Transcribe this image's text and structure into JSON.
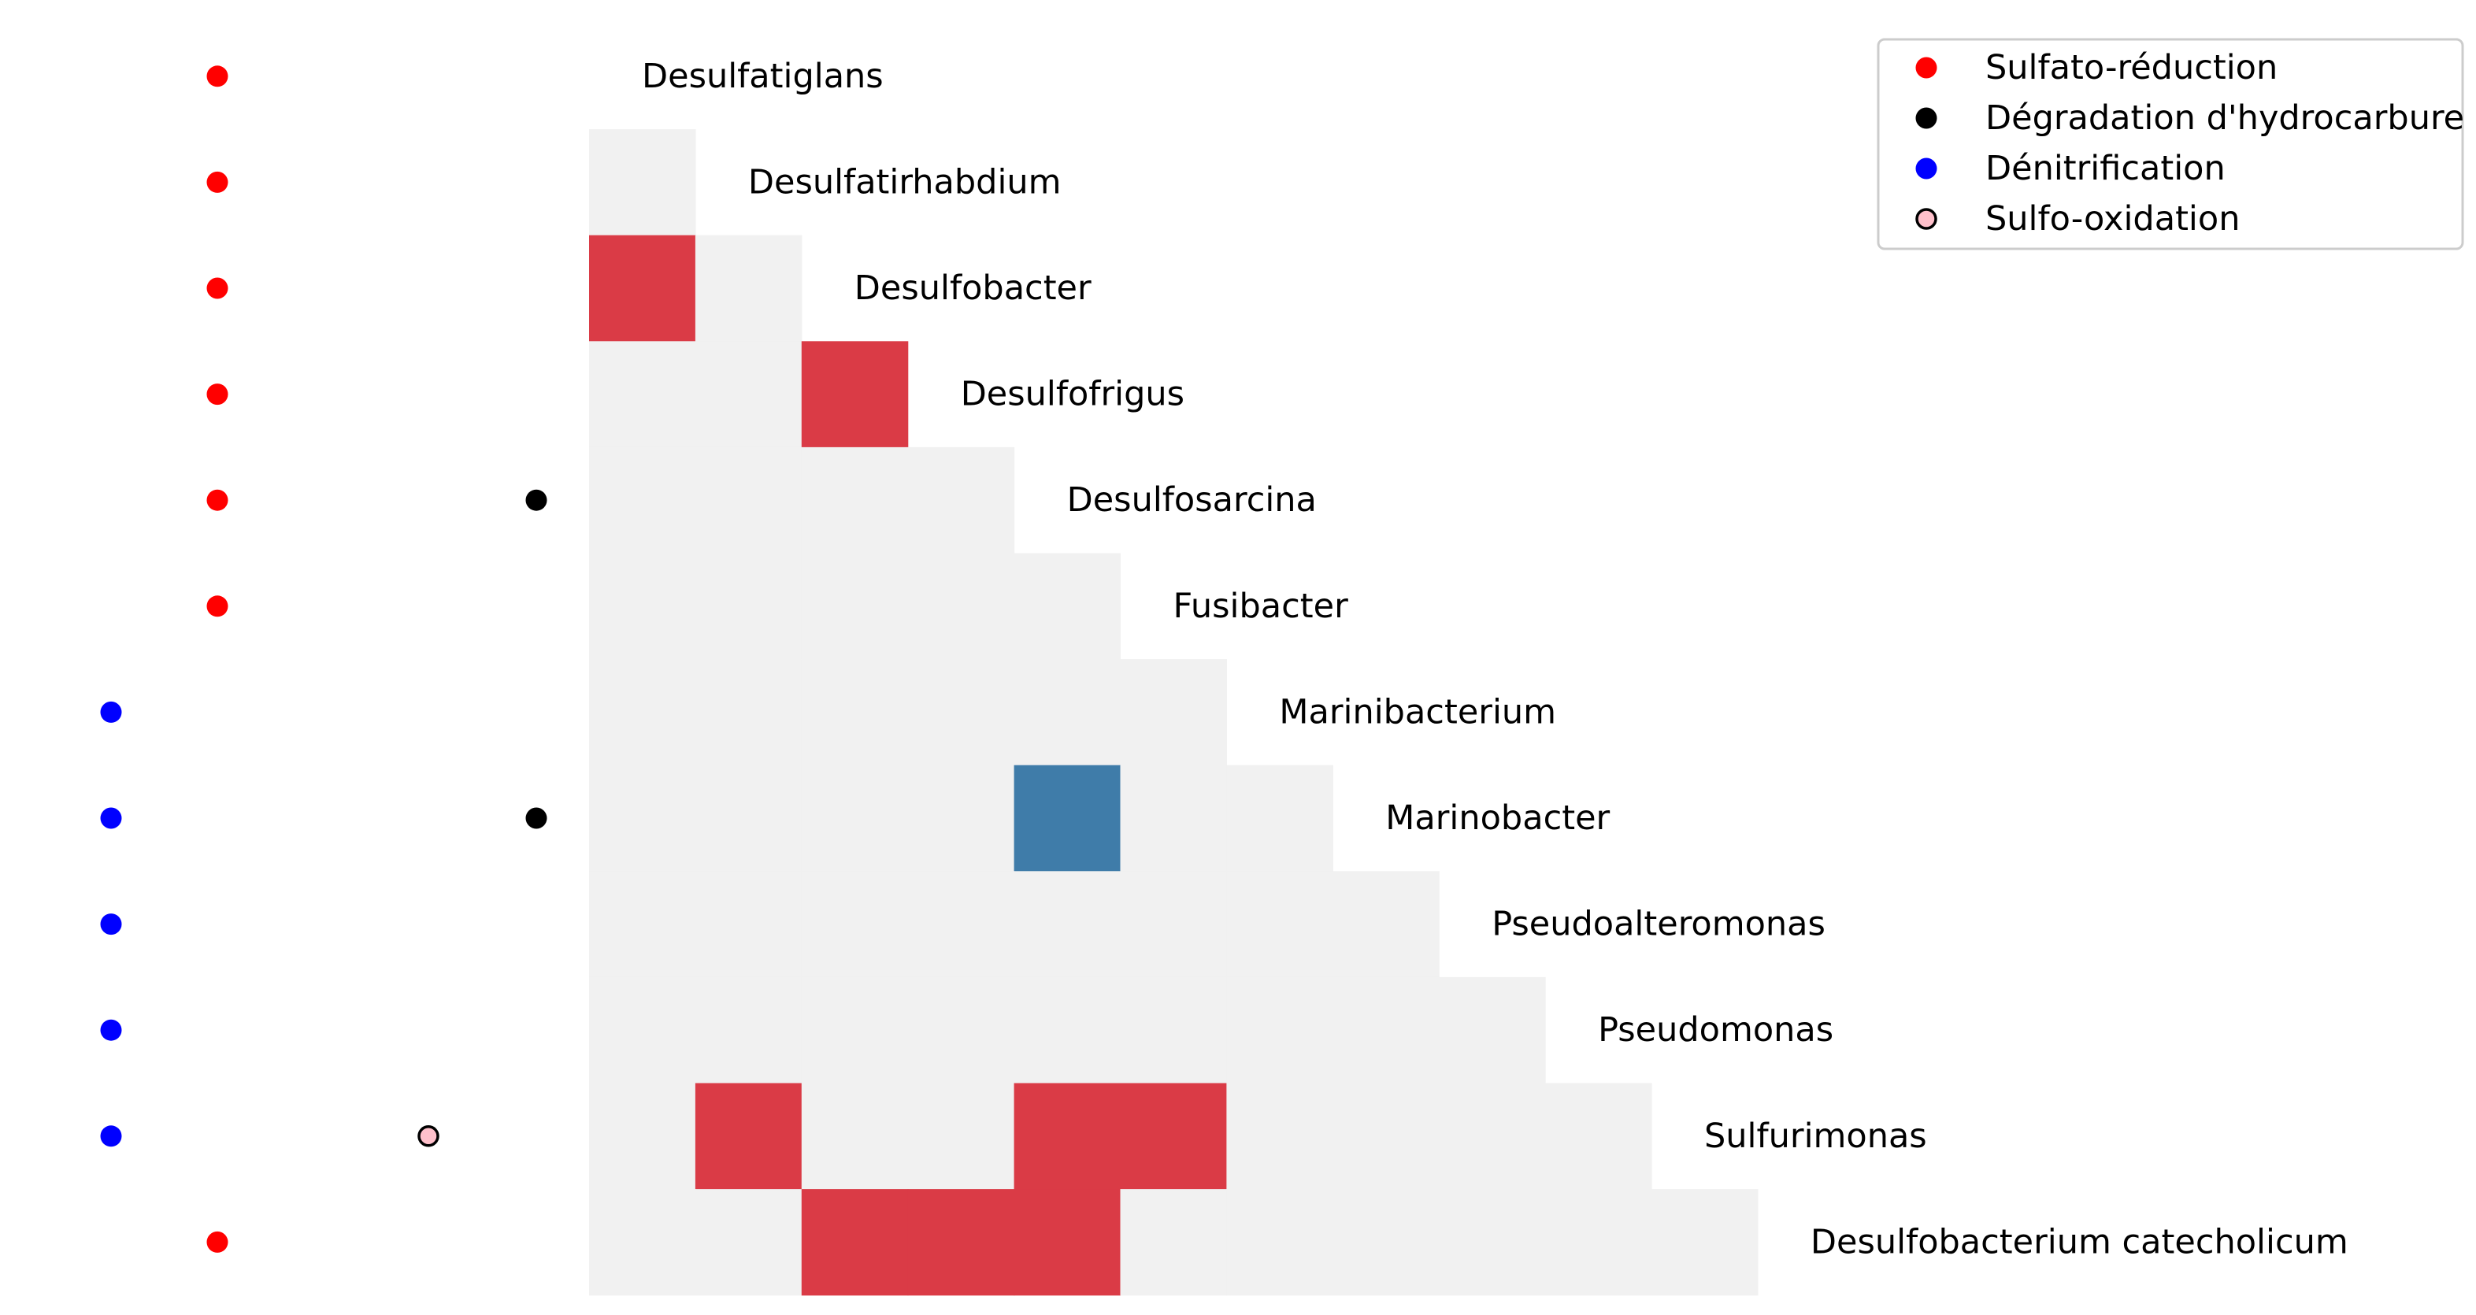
{
  "chart_data": {
    "type": "heatmap",
    "title": "",
    "xlabel": "",
    "ylabel": "",
    "taxa": [
      "Desulfatiglans",
      "Desulfatirhabdium",
      "Desulfobacter",
      "Desulfofrigus",
      "Desulfosarcina",
      "Fusibacter",
      "Marinibacterium",
      "Marinobacter",
      "Pseudoalteromonas",
      "Pseudomonas",
      "Sulfurimonas",
      "Desulfobacterium catecholicum"
    ],
    "matrix_shape": "lower-triangle",
    "cell_colors": {
      "neutral": "#f1f1f1",
      "positive": "#da3b46",
      "negative": "#3f7ca9"
    },
    "cells": [
      {
        "row": 2,
        "col": 0,
        "sign": "positive"
      },
      {
        "row": 3,
        "col": 2,
        "sign": "positive"
      },
      {
        "row": 7,
        "col": 4,
        "sign": "negative"
      },
      {
        "row": 10,
        "col": 1,
        "sign": "positive"
      },
      {
        "row": 10,
        "col": 4,
        "sign": "positive"
      },
      {
        "row": 10,
        "col": 5,
        "sign": "positive"
      },
      {
        "row": 11,
        "col": 2,
        "sign": "positive"
      },
      {
        "row": 11,
        "col": 3,
        "sign": "positive"
      },
      {
        "row": 11,
        "col": 4,
        "sign": "positive"
      }
    ],
    "function_columns": [
      "denitrification",
      "sulfate_reduction",
      "sulfur_oxidation",
      "hydrocarbon_degradation"
    ],
    "functions": [
      {
        "row": 0,
        "column": "sulfate_reduction"
      },
      {
        "row": 1,
        "column": "sulfate_reduction"
      },
      {
        "row": 2,
        "column": "sulfate_reduction"
      },
      {
        "row": 3,
        "column": "sulfate_reduction"
      },
      {
        "row": 4,
        "column": "sulfate_reduction"
      },
      {
        "row": 4,
        "column": "hydrocarbon_degradation"
      },
      {
        "row": 5,
        "column": "sulfate_reduction"
      },
      {
        "row": 6,
        "column": "denitrification"
      },
      {
        "row": 7,
        "column": "denitrification"
      },
      {
        "row": 7,
        "column": "hydrocarbon_degradation"
      },
      {
        "row": 8,
        "column": "denitrification"
      },
      {
        "row": 9,
        "column": "denitrification"
      },
      {
        "row": 10,
        "column": "denitrification"
      },
      {
        "row": 10,
        "column": "sulfur_oxidation"
      },
      {
        "row": 11,
        "column": "sulfate_reduction"
      }
    ],
    "legend": {
      "position": "top-right",
      "entries": [
        {
          "key": "sulfate_reduction",
          "label": "Sulfato-réduction",
          "color": "#ff0000",
          "edge": "none"
        },
        {
          "key": "hydrocarbon_degradation",
          "label": "Dégradation d'hydrocarbure",
          "color": "#000000",
          "edge": "none"
        },
        {
          "key": "denitrification",
          "label": "Dénitrification",
          "color": "#0000ff",
          "edge": "none"
        },
        {
          "key": "sulfur_oxidation",
          "label": "Sulfo-oxidation",
          "color": "#ffc0cb",
          "edge": "#000000"
        }
      ]
    }
  }
}
